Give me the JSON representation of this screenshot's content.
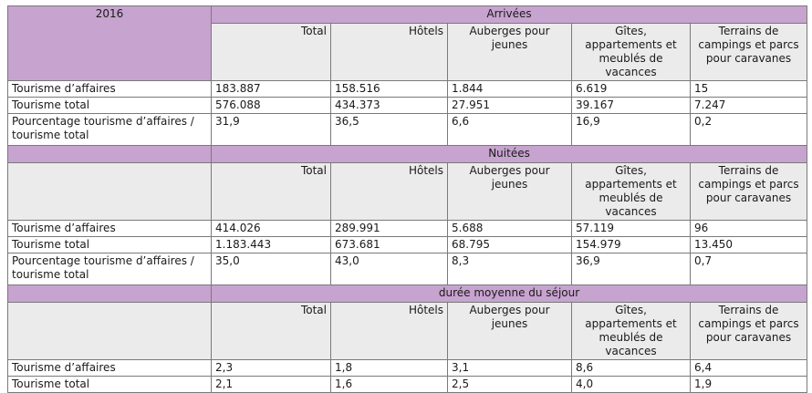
{
  "year": "2016",
  "sections": [
    {
      "title": "Arrivées",
      "columns": [
        "Total",
        "Hôtels",
        "Auberges pour jeunes",
        "Gîtes, appartements et meublés de vacances",
        "Terrains de campings et parcs pour caravanes"
      ],
      "rows": [
        {
          "label": "Tourisme d’affaires",
          "values": [
            "183.887",
            "158.516",
            "1.844",
            "6.619",
            "15"
          ]
        },
        {
          "label": "Tourisme total",
          "values": [
            "576.088",
            "434.373",
            "27.951",
            "39.167",
            "7.247"
          ]
        },
        {
          "label": "Pourcentage tourisme d’affaires / tourisme total",
          "values": [
            "31,9",
            "36,5",
            "6,6",
            "16,9",
            "0,2"
          ]
        }
      ]
    },
    {
      "title": "Nuitées",
      "columns": [
        "Total",
        "Hôtels",
        "Auberges pour jeunes",
        "Gîtes, appartements et meublés de vacances",
        "Terrains de campings et parcs pour caravanes"
      ],
      "rows": [
        {
          "label": "Tourisme d’affaires",
          "values": [
            "414.026",
            "289.991",
            "5.688",
            "57.119",
            "96"
          ]
        },
        {
          "label": "Tourisme total",
          "values": [
            "1.183.443",
            "673.681",
            "68.795",
            "154.979",
            "13.450"
          ]
        },
        {
          "label": "Pourcentage tourisme d’affaires / tourisme total",
          "values": [
            "35,0",
            "43,0",
            "8,3",
            "36,9",
            "0,7"
          ]
        }
      ]
    },
    {
      "title": "durée moyenne du séjour",
      "columns": [
        "Total",
        "Hôtels",
        "Auberges pour jeunes",
        "Gîtes, appartements et meublés de vacances",
        "Terrains de campings et parcs pour caravanes"
      ],
      "rows": [
        {
          "label": "Tourisme d’affaires",
          "values": [
            "2,3",
            "1,8",
            "3,1",
            "8,6",
            "6,4"
          ]
        },
        {
          "label": "Tourisme total",
          "values": [
            "2,1",
            "1,6",
            "2,5",
            "4,0",
            "1,9"
          ]
        }
      ]
    }
  ],
  "colors": {
    "header_band": "#c7a3cf",
    "column_header_bg": "#ebebeb",
    "border": "#7a7a7a"
  }
}
